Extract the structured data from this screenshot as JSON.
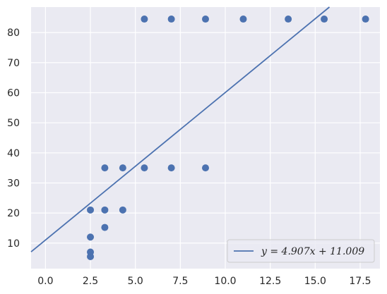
{
  "chart_data": {
    "type": "scatter",
    "xlim": [
      -0.8,
      18.6
    ],
    "ylim": [
      1.5,
      88.5
    ],
    "x_ticks": [
      "0.0",
      "2.5",
      "5.0",
      "7.5",
      "10.0",
      "12.5",
      "15.0",
      "17.5"
    ],
    "y_ticks": [
      "10",
      "20",
      "30",
      "40",
      "50",
      "60",
      "70",
      "80"
    ],
    "grid": true,
    "background": "#eaeaf2",
    "marker_color": "#4c72b0",
    "line_color": "#4c72b0",
    "legend_position": "lower-right",
    "series": [
      {
        "kind": "points",
        "points": [
          [
            2.5,
            21
          ],
          [
            2.5,
            12
          ],
          [
            2.5,
            7
          ],
          [
            2.5,
            5.5
          ],
          [
            3.3,
            35
          ],
          [
            3.3,
            21
          ],
          [
            3.3,
            15.2
          ],
          [
            4.3,
            35
          ],
          [
            4.3,
            21
          ],
          [
            5.5,
            84.5
          ],
          [
            5.5,
            35
          ],
          [
            7.0,
            84.5
          ],
          [
            7.0,
            35
          ],
          [
            8.9,
            84.5
          ],
          [
            8.9,
            35
          ],
          [
            11.0,
            84.5
          ],
          [
            13.5,
            84.5
          ],
          [
            15.5,
            84.5
          ],
          [
            17.8,
            84.5
          ]
        ]
      },
      {
        "kind": "line",
        "slope": 4.907,
        "intercept": 11.009,
        "label": "y = 4.907x + 11.009"
      }
    ]
  }
}
